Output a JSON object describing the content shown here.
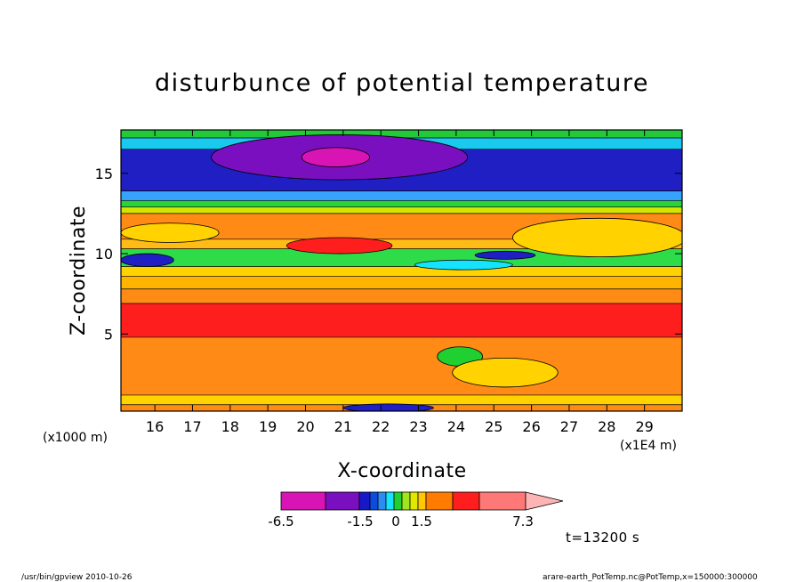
{
  "chart_data": {
    "type": "heatmap",
    "title": "disturbunce of potential temperature",
    "xlabel": "X-coordinate",
    "ylabel": "Z-coordinate",
    "x_unit_left": "(x1000 m)",
    "x_unit_right": "(x1E4 m)",
    "x_ticks": [
      "16",
      "17",
      "18",
      "19",
      "20",
      "21",
      "22",
      "23",
      "24",
      "25",
      "26",
      "27",
      "28",
      "29"
    ],
    "y_ticks": [
      "5",
      "10",
      "15"
    ],
    "xlim": [
      15.1,
      30.0
    ],
    "ylim": [
      0.2,
      17.7
    ],
    "time_label": "t=13200 s",
    "colorbar": {
      "tick_labels": [
        "-6.5",
        "-1.5",
        "0",
        "1.5",
        "7.3"
      ],
      "colors": [
        "#d815b4",
        "#7a0fbf",
        "#1818c8",
        "#0a4be0",
        "#2c8cf0",
        "#15e4ff",
        "#20d030",
        "#a0e61a",
        "#e0e800",
        "#ffc800",
        "#ff7c00",
        "#ff1e1e",
        "#ff7878",
        "#ffb4b4"
      ]
    },
    "bands": [
      {
        "z_top": 17.7,
        "z_bottom": 17.2,
        "color": "#22c938"
      },
      {
        "z_top": 17.2,
        "z_bottom": 16.5,
        "color": "#19c9ee"
      },
      {
        "z_top": 16.5,
        "z_bottom": 13.9,
        "color": "#1f1fc4"
      },
      {
        "z_top": 13.9,
        "z_bottom": 13.3,
        "color": "#38a2ff"
      },
      {
        "z_top": 13.3,
        "z_bottom": 12.9,
        "color": "#2cd238"
      },
      {
        "z_top": 12.9,
        "z_bottom": 12.5,
        "color": "#d4e600"
      },
      {
        "z_top": 12.5,
        "z_bottom": 10.9,
        "color": "#ff8a16"
      },
      {
        "z_top": 10.9,
        "z_bottom": 10.3,
        "color": "#ffbc16"
      },
      {
        "z_top": 10.3,
        "z_bottom": 9.2,
        "color": "#2edc4a"
      },
      {
        "z_top": 9.2,
        "z_bottom": 8.6,
        "color": "#ffd200"
      },
      {
        "z_top": 8.6,
        "z_bottom": 7.8,
        "color": "#ffb400"
      },
      {
        "z_top": 7.8,
        "z_bottom": 6.9,
        "color": "#ff8a16"
      },
      {
        "z_top": 6.9,
        "z_bottom": 4.8,
        "color": "#ff1e1e"
      },
      {
        "z_top": 4.8,
        "z_bottom": 1.2,
        "color": "#ff8a16"
      },
      {
        "z_top": 1.2,
        "z_bottom": 0.6,
        "color": "#ffd200"
      },
      {
        "z_top": 0.6,
        "z_bottom": 0.2,
        "color": "#ff8a16"
      }
    ],
    "features": [
      {
        "name": "cold-core-purple",
        "cx": 20.9,
        "cz": 16.0,
        "rx": 3.4,
        "rz": 1.4,
        "color": "#7a0fbf"
      },
      {
        "name": "cold-core-magenta",
        "cx": 20.8,
        "cz": 16.0,
        "rx": 0.9,
        "rz": 0.6,
        "color": "#d815b4"
      },
      {
        "name": "cold-west-blue",
        "cx": 15.8,
        "cz": 9.6,
        "rx": 0.7,
        "rz": 0.4,
        "color": "#1f1fc4"
      },
      {
        "name": "upper-west-yellow",
        "cx": 16.4,
        "cz": 11.3,
        "rx": 1.3,
        "rz": 0.6,
        "color": "#ffd200"
      },
      {
        "name": "upper-red-blob",
        "cx": 20.9,
        "cz": 10.5,
        "rx": 1.4,
        "rz": 0.5,
        "color": "#ff1e1e"
      },
      {
        "name": "upper-east-yellow",
        "cx": 27.8,
        "cz": 11.0,
        "rx": 2.3,
        "rz": 1.2,
        "color": "#ffd200"
      },
      {
        "name": "mid-east-cyan",
        "cx": 24.2,
        "cz": 9.3,
        "rx": 1.3,
        "rz": 0.3,
        "color": "#15e4ff"
      },
      {
        "name": "mid-east-blue",
        "cx": 25.3,
        "cz": 9.9,
        "rx": 0.8,
        "rz": 0.25,
        "color": "#1f1fc4"
      },
      {
        "name": "low-east-green",
        "cx": 24.1,
        "cz": 3.6,
        "rx": 0.6,
        "rz": 0.6,
        "color": "#20d030"
      },
      {
        "name": "low-east-yellow",
        "cx": 25.3,
        "cz": 2.6,
        "rx": 1.4,
        "rz": 0.9,
        "color": "#ffd200"
      },
      {
        "name": "surface-blue",
        "cx": 22.2,
        "cz": 0.4,
        "rx": 1.2,
        "rz": 0.25,
        "color": "#1f1fc4"
      }
    ]
  },
  "footer": {
    "left": "/usr/bin/gpview   2010-10-26",
    "right": "arare-earth_PotTemp.nc@PotTemp,x=150000:300000"
  }
}
